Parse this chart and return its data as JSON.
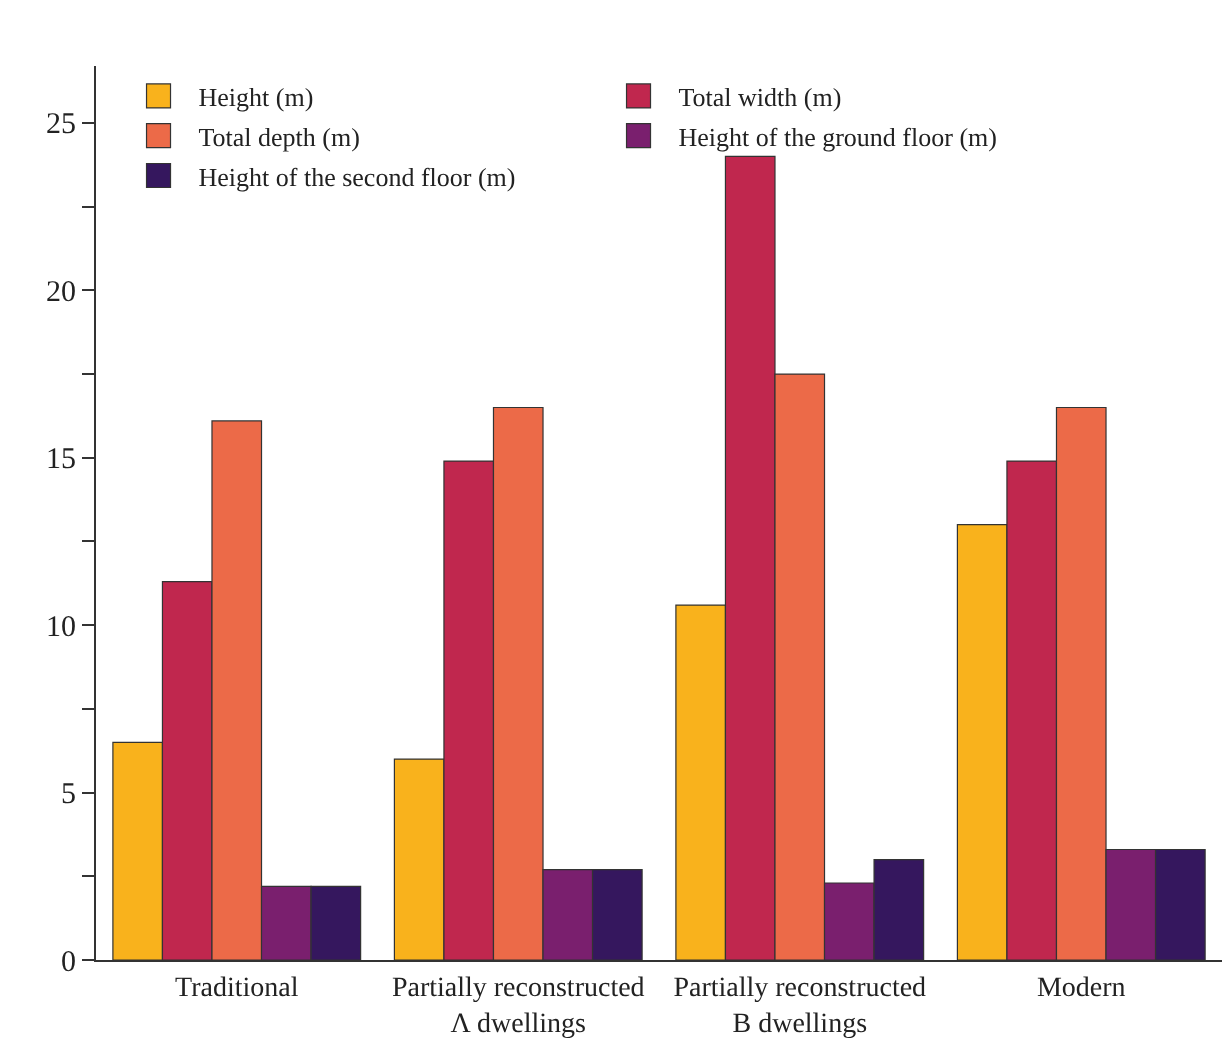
{
  "chart_data": {
    "type": "bar",
    "categories": [
      "Traditional",
      "Partially reconstructed Λ dwellings",
      "Partially reconstructed B dwellings",
      "Modern"
    ],
    "series": [
      {
        "name": "Height (m)",
        "color": "#f9b21c",
        "values": [
          6.5,
          6.0,
          10.6,
          13.0
        ]
      },
      {
        "name": "Total width (m)",
        "color": "#c0274e",
        "values": [
          11.3,
          14.9,
          24.0,
          14.9
        ]
      },
      {
        "name": "Total depth (m)",
        "color": "#ec6a48",
        "values": [
          16.1,
          16.5,
          17.5,
          16.5
        ]
      },
      {
        "name": "Height of the ground floor (m)",
        "color": "#7a1f6e",
        "values": [
          2.2,
          2.7,
          2.3,
          3.3
        ]
      },
      {
        "name": "Height of the second floor (m)",
        "color": "#35175e",
        "values": [
          2.2,
          2.7,
          3.0,
          3.3
        ]
      }
    ],
    "ylim": [
      0,
      26.7
    ],
    "yticks": [
      0,
      {
        "value": 2.5,
        "label": null
      },
      5,
      {
        "value": 7.5,
        "label": null
      },
      10,
      {
        "value": 12.5,
        "label": null
      },
      15,
      {
        "value": 17.5,
        "label": null
      },
      20,
      {
        "value": 22.5,
        "label": null
      },
      25
    ],
    "grid": false,
    "legend": "top"
  }
}
